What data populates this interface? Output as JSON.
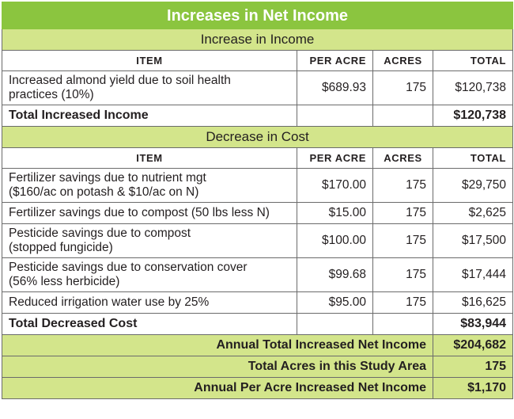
{
  "title": "Increases in Net Income",
  "income": {
    "section_label": "Increase in Income",
    "headers": {
      "item": "ITEM",
      "per_acre": "PER ACRE",
      "acres": "ACRES",
      "total": "TOTAL"
    },
    "rows": [
      {
        "item_line1": "Increased almond yield due to soil health",
        "item_line2": "practices (10%)",
        "per_acre": "$689.93",
        "acres": "175",
        "total": "$120,738"
      }
    ],
    "total_label": "Total Increased Income",
    "total_value": "$120,738"
  },
  "cost": {
    "section_label": "Decrease in Cost",
    "headers": {
      "item": "ITEM",
      "per_acre": "PER ACRE",
      "acres": "ACRES",
      "total": "TOTAL"
    },
    "rows": [
      {
        "item_line1": "Fertilizer savings due to nutrient mgt",
        "item_line2": "($160/ac on potash & $10/ac on N)",
        "per_acre": "$170.00",
        "acres": "175",
        "total": "$29,750"
      },
      {
        "item_line1": "Fertilizer savings due to compost (50 lbs less N)",
        "per_acre": "$15.00",
        "acres": "175",
        "total": "$2,625"
      },
      {
        "item_line1": "Pesticide savings due to compost",
        "item_line2": "(stopped fungicide)",
        "per_acre": "$100.00",
        "acres": "175",
        "total": "$17,500"
      },
      {
        "item_line1": "Pesticide savings due to conservation cover",
        "item_line2": "(56% less herbicide)",
        "per_acre": "$99.68",
        "acres": "175",
        "total": "$17,444"
      },
      {
        "item_line1": "Reduced irrigation water use by 25%",
        "per_acre": "$95.00",
        "acres": "175",
        "total": "$16,625"
      }
    ],
    "total_label": "Total Decreased Cost",
    "total_value": "$83,944"
  },
  "summary": [
    {
      "label": "Annual Total Increased Net Income",
      "value": "$204,682"
    },
    {
      "label": "Total Acres in this Study Area",
      "value": "175"
    },
    {
      "label": "Annual Per Acre Increased Net Income",
      "value": "$1,170"
    }
  ]
}
